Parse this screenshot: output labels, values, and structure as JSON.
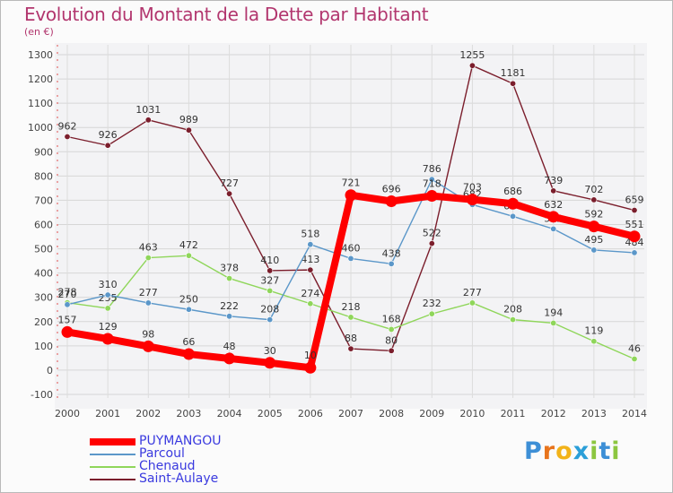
{
  "header": {
    "title": "Evolution du Montant de la Dette par Habitant",
    "subtitle": "(en €)"
  },
  "logo": {
    "letters": [
      "P",
      "r",
      "o",
      "x",
      "i",
      "t",
      "i"
    ],
    "colors": [
      "#3d8fd6",
      "#e8741c",
      "#f2b31a",
      "#2b9fd8",
      "#8cc63f",
      "#3d8fd6",
      "#8cc63f"
    ]
  },
  "chart_data": {
    "type": "line",
    "title": "Evolution du Montant de la Dette par Habitant",
    "subtitle": "(en €)",
    "xlabel": "",
    "ylabel": "",
    "x": [
      2000,
      2001,
      2002,
      2003,
      2004,
      2005,
      2006,
      2007,
      2008,
      2009,
      2010,
      2011,
      2012,
      2013,
      2014
    ],
    "ylim": [
      -100,
      1300
    ],
    "yticks": [
      -100,
      0,
      100,
      200,
      300,
      400,
      500,
      600,
      700,
      800,
      900,
      1000,
      1100,
      1200,
      1300
    ],
    "grid": true,
    "legend_position": "bottom-left",
    "series": [
      {
        "name": "Saint-Aulaye",
        "color": "#7b1e2c",
        "values": [
          962,
          926,
          1031,
          989,
          727,
          410,
          413,
          88,
          80,
          522,
          1255,
          1181,
          739,
          702,
          659
        ]
      },
      {
        "name": "Chenaud",
        "color": "#8fd65a",
        "values": [
          278,
          255,
          463,
          472,
          378,
          327,
          274,
          218,
          168,
          232,
          277,
          208,
          194,
          119,
          46
        ]
      },
      {
        "name": "Parcoul",
        "color": "#5b97c9",
        "values": [
          270,
          310,
          277,
          250,
          222,
          208,
          518,
          460,
          438,
          786,
          682,
          634,
          582,
          495,
          484
        ]
      },
      {
        "name": "PUYMANGOU",
        "color": "#ff0000",
        "values": [
          157,
          129,
          98,
          66,
          48,
          30,
          10,
          721,
          696,
          718,
          703,
          686,
          632,
          592,
          551
        ]
      }
    ]
  },
  "legend": {
    "items": [
      {
        "name": "PUYMANGOU",
        "color": "#ff0000",
        "text_color": "#3a3adf",
        "thickness": 8
      },
      {
        "name": "Parcoul",
        "color": "#5b97c9",
        "text_color": "#3a3adf",
        "thickness": 2
      },
      {
        "name": "Chenaud",
        "color": "#8fd65a",
        "text_color": "#3a3adf",
        "thickness": 2
      },
      {
        "name": "Saint-Aulaye",
        "color": "#7b1e2c",
        "text_color": "#3a3adf",
        "thickness": 2
      }
    ]
  }
}
